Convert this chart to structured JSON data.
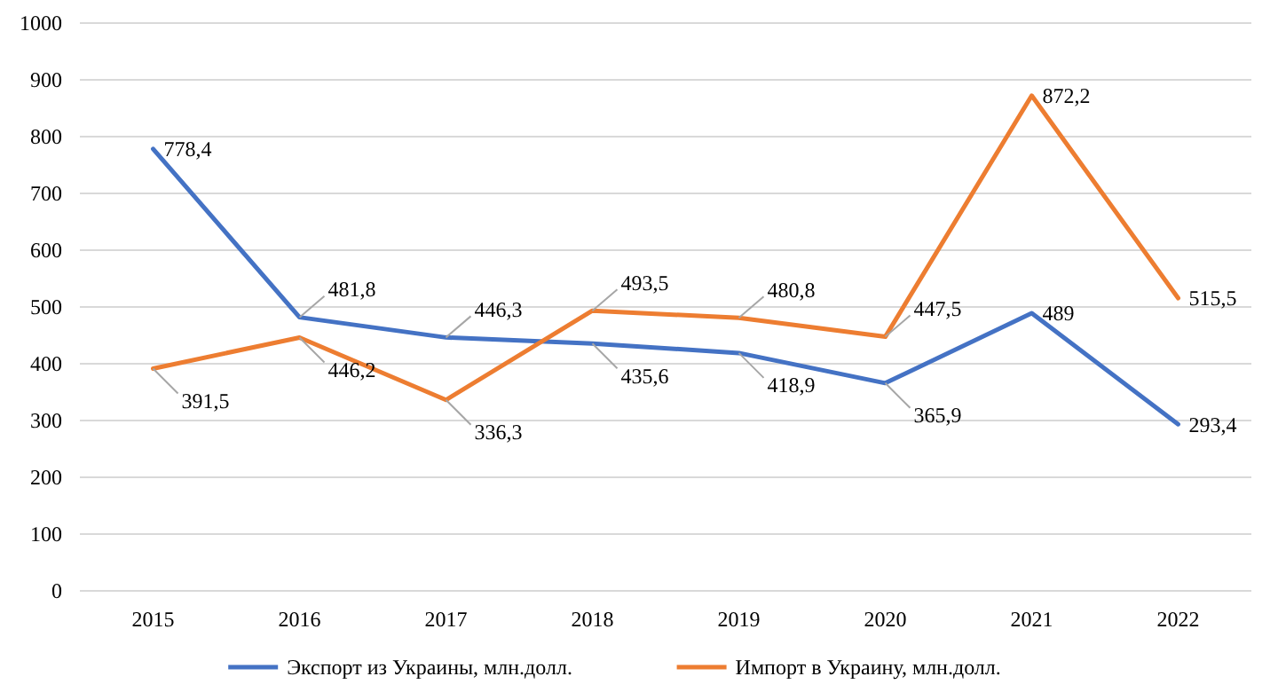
{
  "chart_data": {
    "type": "line",
    "categories": [
      "2015",
      "2016",
      "2017",
      "2018",
      "2019",
      "2020",
      "2021",
      "2022"
    ],
    "series": [
      {
        "name": "Экспорт из Украины, млн.долл.",
        "color": "#4472c4",
        "values": [
          778.4,
          481.8,
          446.3,
          435.6,
          418.9,
          365.9,
          489,
          293.4
        ],
        "value_labels": [
          "778,4",
          "481,8",
          "446,3",
          "435,6",
          "418,9",
          "365,9",
          "489",
          "293,4"
        ]
      },
      {
        "name": "Импорт в Украину, млн.долл.",
        "color": "#ed7d31",
        "values": [
          391.5,
          446.2,
          336.3,
          493.5,
          480.8,
          447.5,
          872.2,
          515.5
        ],
        "value_labels": [
          "391,5",
          "446,2",
          "336,3",
          "493,5",
          "480,8",
          "447,5",
          "872,2",
          "515,5"
        ]
      }
    ],
    "ylim": [
      0,
      1000
    ],
    "yticks": [
      0,
      100,
      200,
      300,
      400,
      500,
      600,
      700,
      800,
      900,
      1000
    ],
    "grid": "y",
    "legend": "bottom",
    "marker": "none",
    "line_style": "solid"
  }
}
